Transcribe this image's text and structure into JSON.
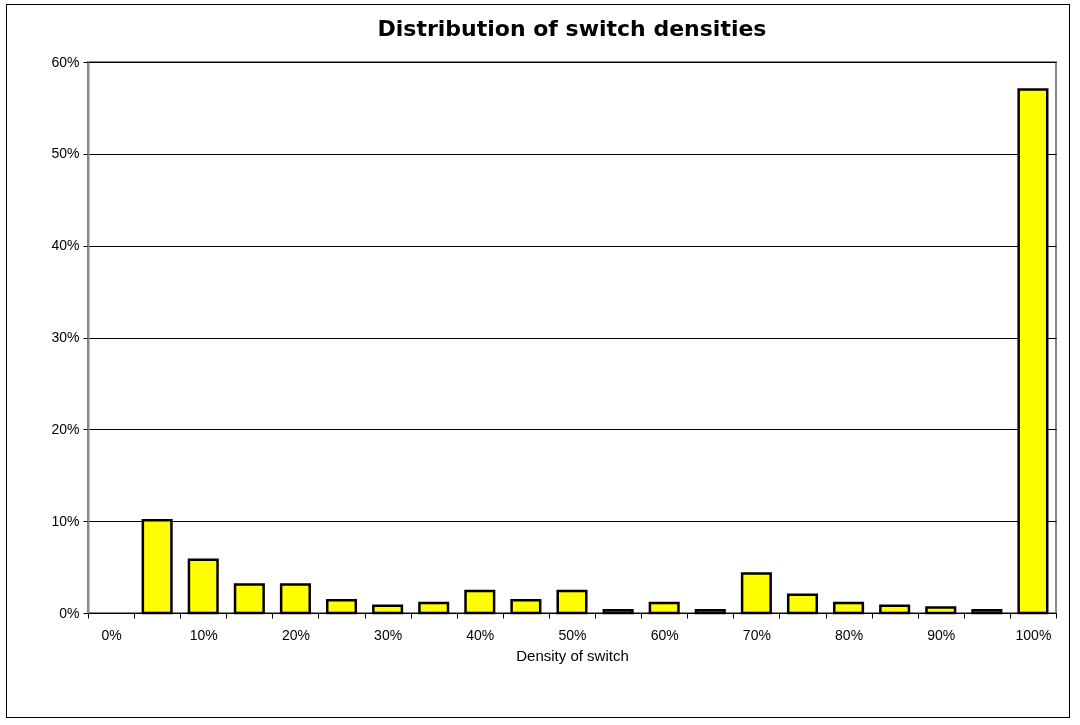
{
  "chart_data": {
    "type": "bar",
    "title": "Distribution of switch densities",
    "xlabel": "Density of switch",
    "categories": [
      "0%",
      null,
      "10%",
      null,
      "20%",
      null,
      "30%",
      null,
      "40%",
      null,
      "50%",
      null,
      "60%",
      null,
      "70%",
      null,
      "80%",
      null,
      "90%",
      null,
      "100%"
    ],
    "values": [
      0,
      10.1,
      5.8,
      3.1,
      3.1,
      1.4,
      0.8,
      1.1,
      2.4,
      1.4,
      2.4,
      0.3,
      1.1,
      0.3,
      4.3,
      2.0,
      1.1,
      0.8,
      0.6,
      0.3,
      57
    ],
    "color": "#ffff00",
    "ylim": [
      0,
      60
    ],
    "yticks": [
      {
        "value": 0,
        "label": "0%"
      },
      {
        "value": 10,
        "label": "10%"
      },
      {
        "value": 20,
        "label": "20%"
      },
      {
        "value": 30,
        "label": "30%"
      },
      {
        "value": 40,
        "label": "40%"
      },
      {
        "value": 50,
        "label": "50%"
      },
      {
        "value": 60,
        "label": "60%"
      }
    ],
    "grid": "y"
  }
}
